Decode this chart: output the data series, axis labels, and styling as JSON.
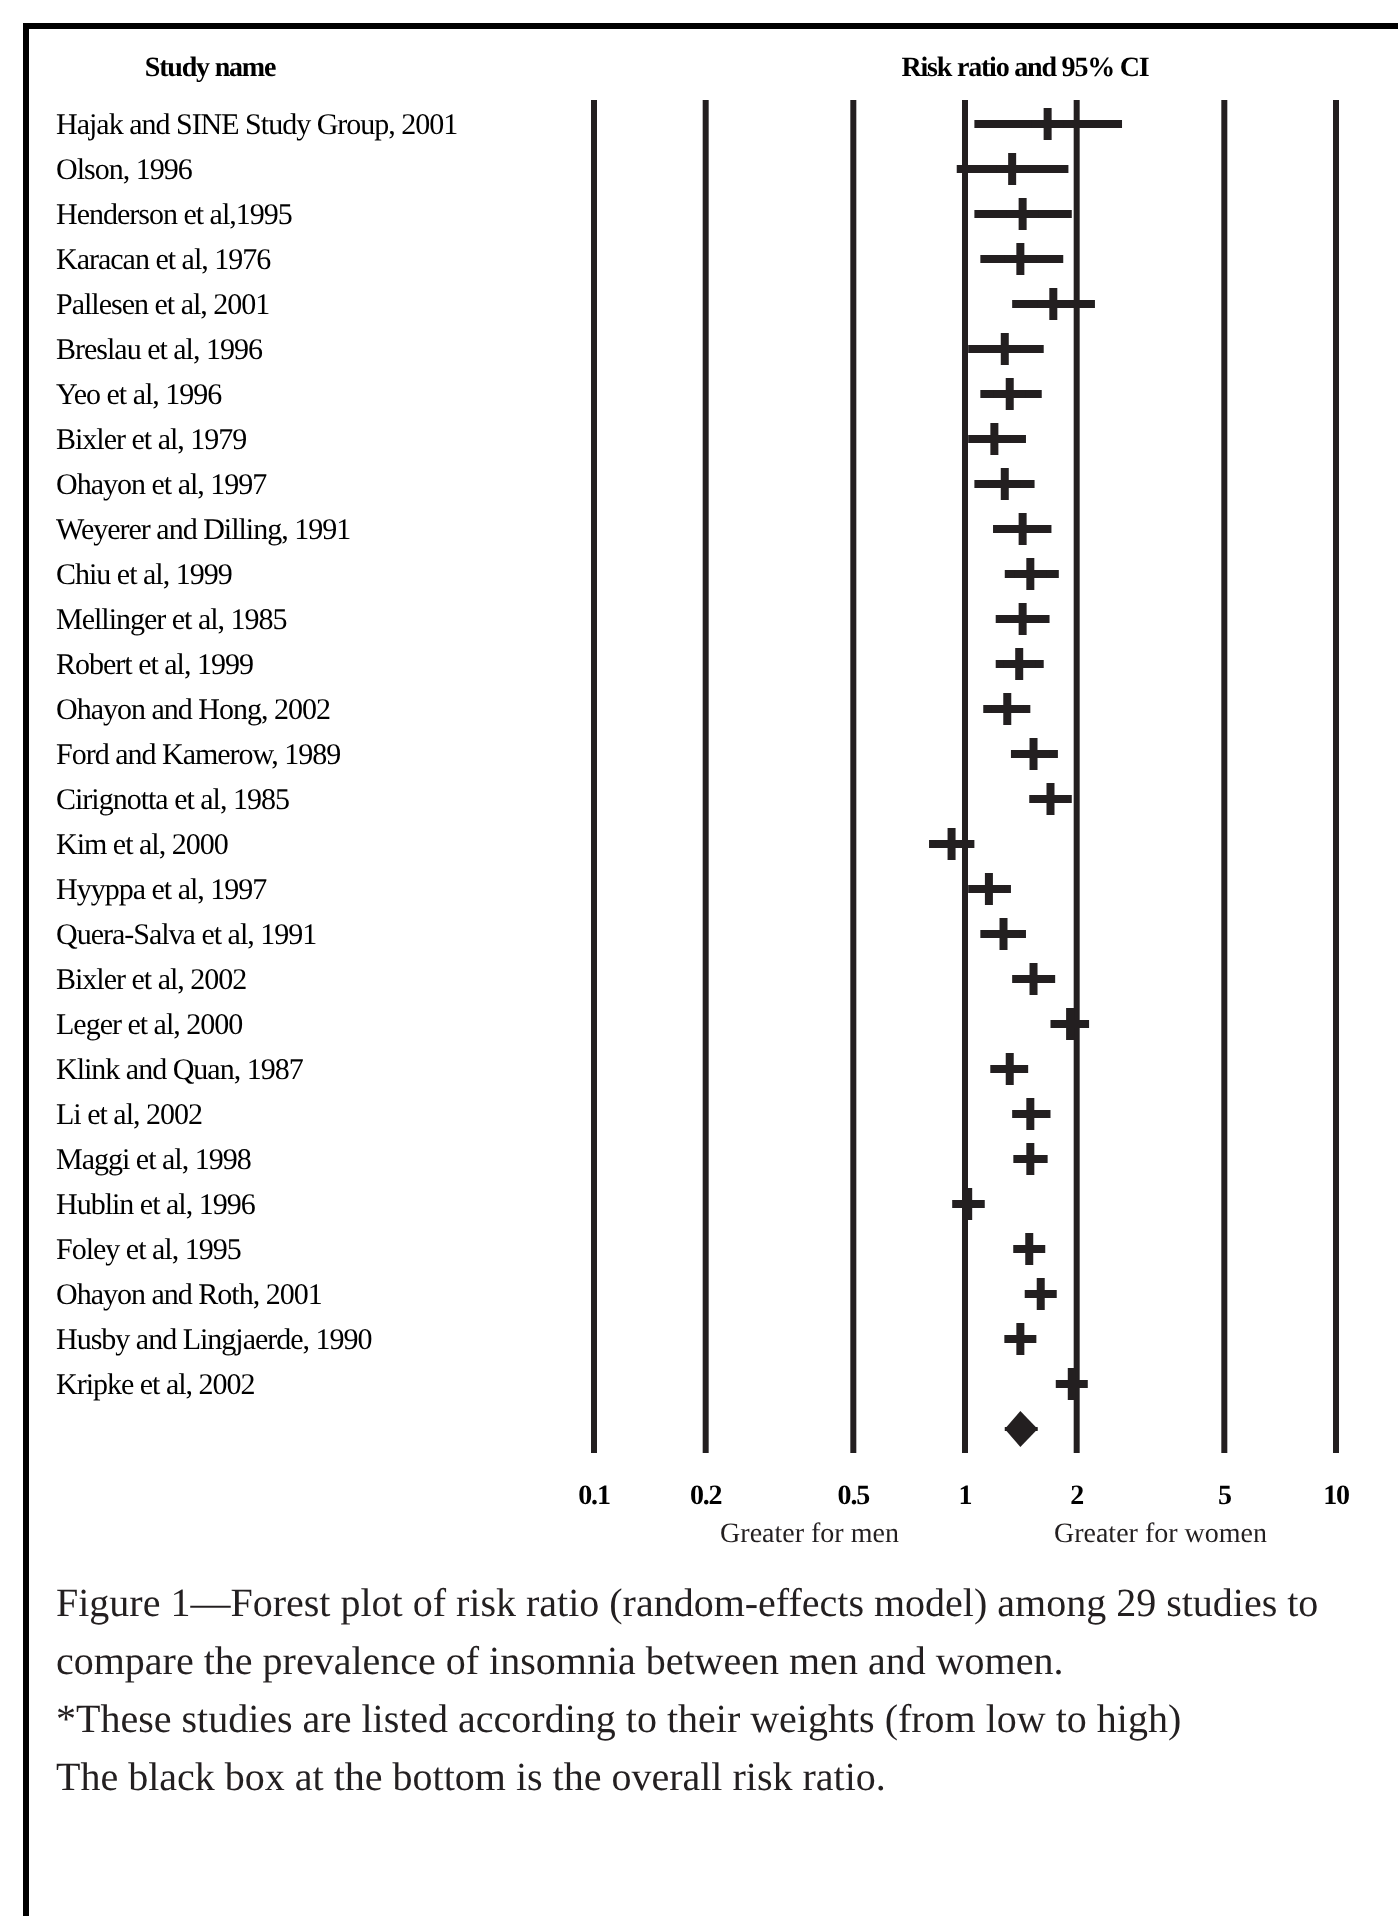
{
  "chart_data": {
    "type": "scatter",
    "title": "Risk ratio and 95% CI",
    "ylabel": "Study name",
    "orientation": "horizontal",
    "categories": [
      "Hajak and SINE Study Group, 2001",
      "Olson, 1996",
      "Henderson et al,1995",
      "Karacan et al, 1976",
      "Pallesen et al, 2001",
      "Breslau et al, 1996",
      "Yeo et al, 1996",
      "Bixler et al, 1979",
      "Ohayon et al, 1997",
      "Weyerer and Dilling, 1991",
      "Chiu et al, 1999",
      "Mellinger et al, 1985",
      "Robert et al, 1999",
      "Ohayon and Hong, 2002",
      "Ford and Kamerow, 1989",
      "Cirignotta et al, 1985",
      "Kim et al, 2000",
      "Hyyppa et al, 1997",
      "Quera-Salva et al, 1991",
      "Bixler et al, 2002",
      "Leger et al, 2000",
      "Klink and Quan, 1987",
      "Li et al, 2002",
      "Maggi et al, 1998",
      "Hublin et al, 1996",
      "Foley et al, 1995",
      "Ohayon and Roth, 2001",
      "Husby and Lingjaerde, 1990",
      "Kripke et al, 2002",
      null
    ],
    "series": [
      {
        "marker": "cross",
        "color": "#231f20",
        "values": [
          1.67,
          1.34,
          1.43,
          1.41,
          1.73,
          1.28,
          1.32,
          1.2,
          1.28,
          1.43,
          1.5,
          1.43,
          1.4,
          1.3,
          1.53,
          1.7,
          0.92,
          1.16,
          1.27,
          1.53,
          1.92,
          1.32,
          1.5,
          1.5,
          1.02,
          1.49,
          1.6,
          1.41,
          1.94,
          null
        ],
        "errors": [
          [
            1.06,
            2.65
          ],
          [
            0.95,
            1.9
          ],
          [
            1.06,
            1.94
          ],
          [
            1.1,
            1.84
          ],
          [
            1.34,
            2.24
          ],
          [
            1.02,
            1.63
          ],
          [
            1.1,
            1.61
          ],
          [
            1.02,
            1.46
          ],
          [
            1.06,
            1.54
          ],
          [
            1.19,
            1.71
          ],
          [
            1.28,
            1.79
          ],
          [
            1.21,
            1.69
          ],
          [
            1.21,
            1.63
          ],
          [
            1.12,
            1.5
          ],
          [
            1.33,
            1.78
          ],
          [
            1.49,
            1.94
          ],
          [
            0.8,
            1.06
          ],
          [
            1.02,
            1.33
          ],
          [
            1.1,
            1.46
          ],
          [
            1.34,
            1.75
          ],
          [
            1.7,
            2.16
          ],
          [
            1.17,
            1.48
          ],
          [
            1.34,
            1.7
          ],
          [
            1.35,
            1.67
          ],
          [
            0.96,
            1.13
          ],
          [
            1.39,
            1.61
          ],
          [
            1.48,
            1.73
          ],
          [
            1.34,
            1.5
          ],
          [
            1.92,
            1.96
          ],
          null
        ]
      },
      {
        "marker": "diamond",
        "color": "#231f20",
        "values": [
          null,
          null,
          null,
          null,
          null,
          null,
          null,
          null,
          null,
          null,
          null,
          null,
          null,
          null,
          null,
          null,
          null,
          null,
          null,
          null,
          null,
          null,
          null,
          null,
          null,
          null,
          null,
          null,
          null,
          1.41
        ],
        "errors": [
          null,
          null,
          null,
          null,
          null,
          null,
          null,
          null,
          null,
          null,
          null,
          null,
          null,
          null,
          null,
          null,
          null,
          null,
          null,
          null,
          null,
          null,
          null,
          null,
          null,
          null,
          null,
          null,
          null,
          [
            1.28,
            1.57
          ]
        ]
      }
    ],
    "log": "x",
    "xlim": [
      0.1,
      10
    ],
    "xticks": [
      0.1,
      0.2,
      0.5,
      1,
      2,
      5,
      10
    ],
    "grid": true,
    "annotations": [
      "Greater for men",
      "Greater for women",
      "Figure 1—Forest plot of risk ratio (random-effects model) among 29 studies to compare the prevalence of insomnia between men and women.",
      "*These studies are listed according to their weights (from low to high)",
      "The black box at the bottom is the overall risk ratio."
    ]
  }
}
